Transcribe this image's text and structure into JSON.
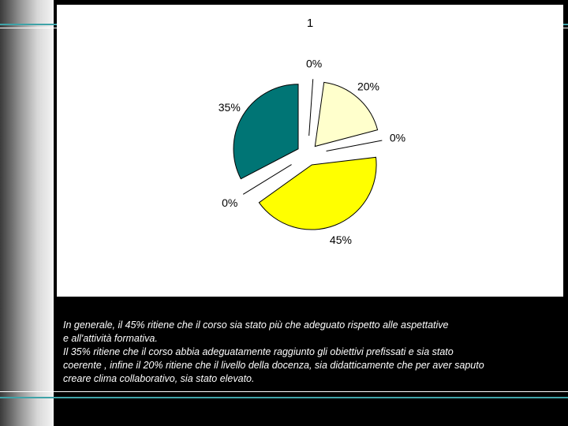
{
  "colors": {
    "background": "#000000",
    "teal_rule": "#3fa3a8",
    "white_rule": "#ffffff"
  },
  "chart_data": {
    "type": "pie",
    "title": "1",
    "slices": [
      {
        "label": "0%",
        "value": 0,
        "color": "#ffffff"
      },
      {
        "label": "20%",
        "value": 20,
        "color": "#ffffcc"
      },
      {
        "label": "0%",
        "value": 0,
        "color": "#ffffff"
      },
      {
        "label": "45%",
        "value": 45,
        "color": "#ffff00"
      },
      {
        "label": "0%",
        "value": 0,
        "color": "#ffffff"
      },
      {
        "label": "35%",
        "value": 35,
        "color": "#007575"
      }
    ],
    "legend": "none"
  },
  "caption": {
    "lines": [
      "In generale, il 45% ritiene che il corso sia stato più che adeguato rispetto alle aspettative",
      "e all'attività formativa.",
      "Il 35% ritiene che il corso abbia adeguatamente raggiunto gli obiettivi prefissati e sia stato",
      "coerente , infine il 20% ritiene che il livello della docenza, sia didatticamente che per aver saputo",
      "creare clima collaborativo, sia stato elevato."
    ]
  }
}
